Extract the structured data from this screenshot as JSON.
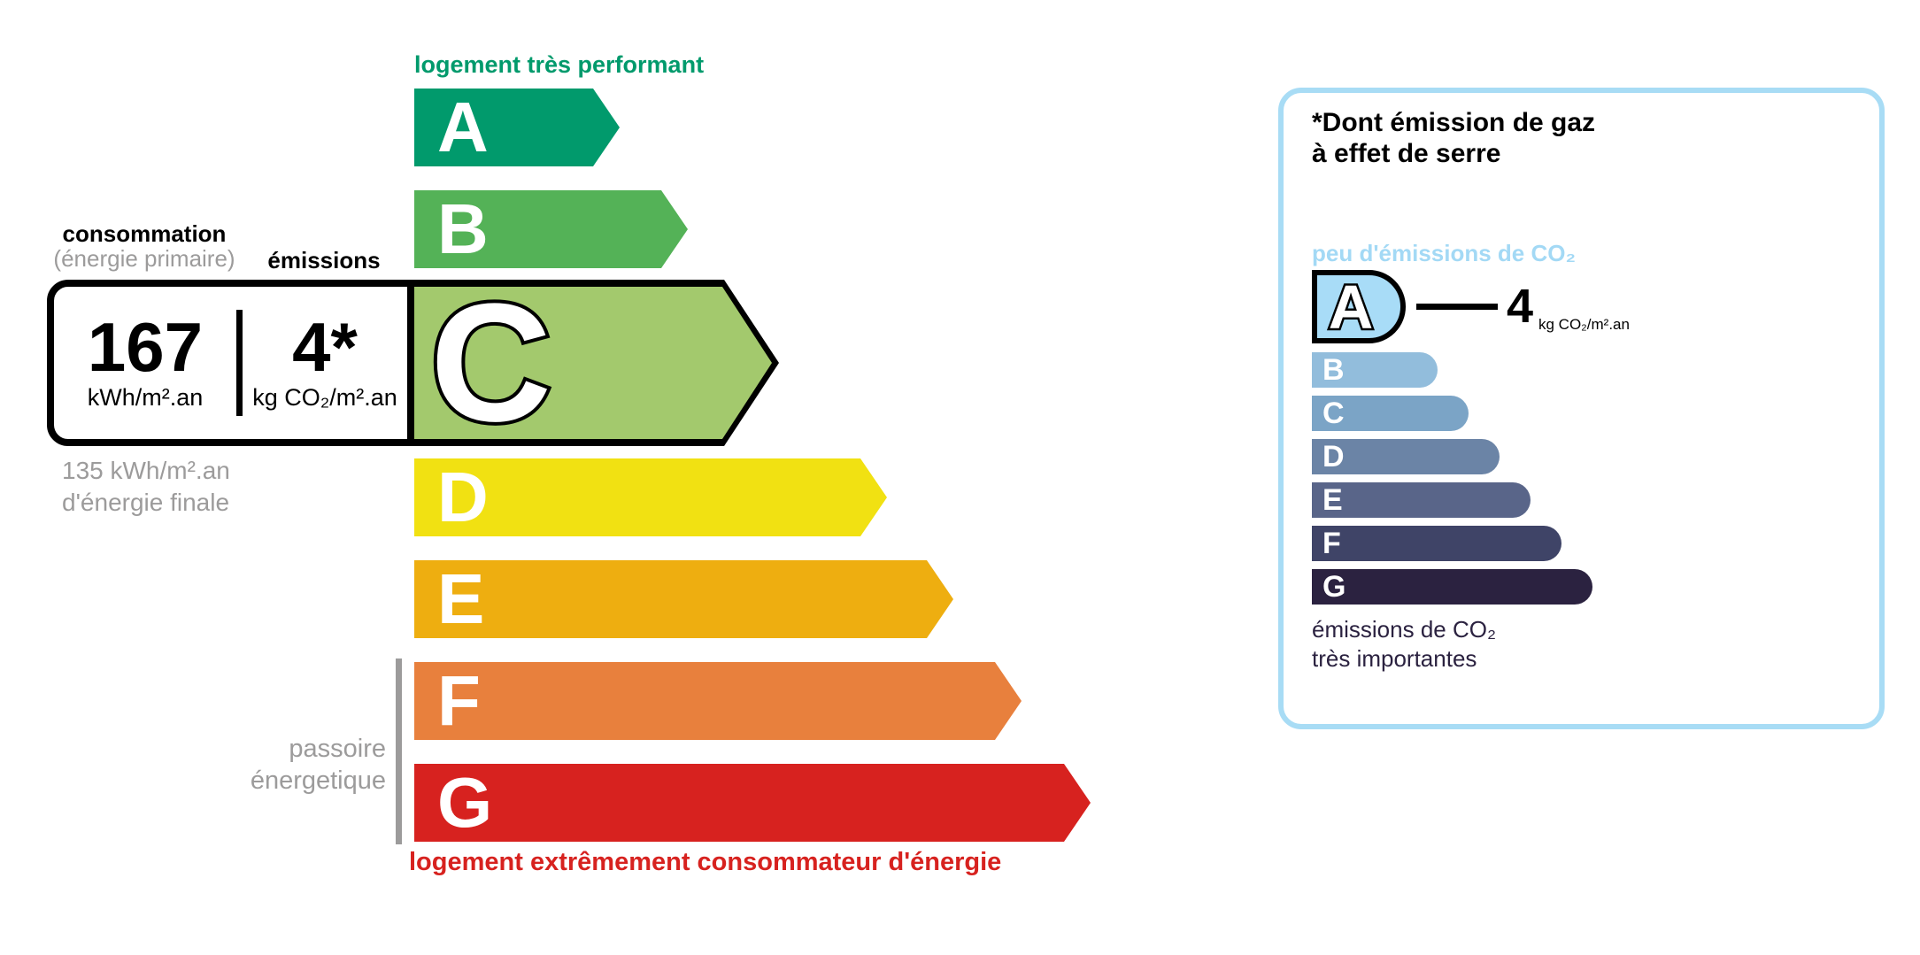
{
  "energy_scale": {
    "top_label": "logement très performant",
    "bottom_label": "logement extrêmement consommateur d'énergie",
    "passoire_line1": "passoire",
    "passoire_line2": "énergetique",
    "selected_class": "C",
    "classes": [
      {
        "letter": "A",
        "color": "#019a6c"
      },
      {
        "letter": "B",
        "color": "#54b257"
      },
      {
        "letter": "C",
        "color": "#a3c96d"
      },
      {
        "letter": "D",
        "color": "#f1e112"
      },
      {
        "letter": "E",
        "color": "#eeae10"
      },
      {
        "letter": "F",
        "color": "#e8803d"
      },
      {
        "letter": "G",
        "color": "#d7221f"
      }
    ]
  },
  "rating_box": {
    "consumption_header_line1": "consommation",
    "consumption_header_line2": "(énergie primaire)",
    "emissions_header": "émissions",
    "consumption_value": "167",
    "consumption_unit": "kWh/m².an",
    "emissions_value": "4*",
    "emissions_unit": "kg CO₂/m².an",
    "final_energy_line1": "135 kWh/m².an",
    "final_energy_line2": "d'énergie finale"
  },
  "co2_panel": {
    "title_line1": "*Dont émission de gaz",
    "title_line2": "à effet de serre",
    "low_emissions_label": "peu d'émissions de CO₂",
    "high_emissions_line1": "émissions de CO₂",
    "high_emissions_line2": "très importantes",
    "selected_class": "A",
    "selected_value": "4",
    "selected_unit": "kg CO₂/m².an",
    "border_color": "#a8dcf5",
    "accent_color": "#a3d9f5",
    "dark_color": "#2b2240",
    "classes": [
      {
        "letter": "A",
        "color": "#a8dcf7"
      },
      {
        "letter": "B",
        "color": "#92bddc"
      },
      {
        "letter": "C",
        "color": "#7ba4c6"
      },
      {
        "letter": "D",
        "color": "#6b84a6"
      },
      {
        "letter": "E",
        "color": "#596589"
      },
      {
        "letter": "F",
        "color": "#3f4467"
      },
      {
        "letter": "G",
        "color": "#2b2240"
      }
    ]
  }
}
